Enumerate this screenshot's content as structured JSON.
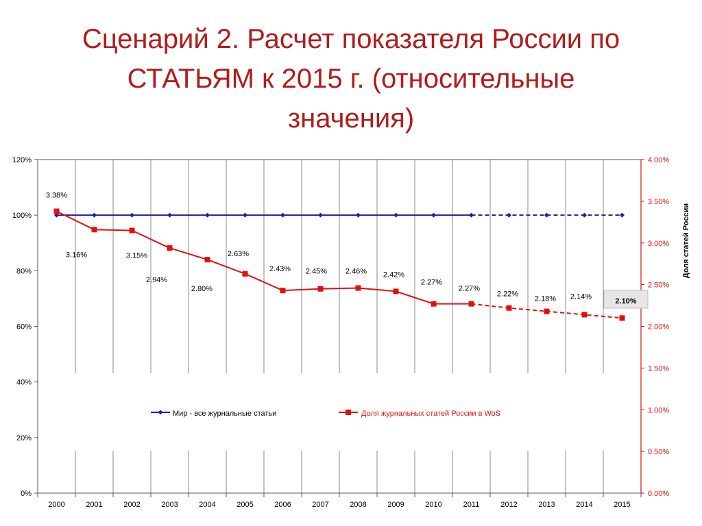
{
  "slide": {
    "title_lines": [
      "Сценарий 2. Расчет показателя России по",
      "СТАТЬЯМ к 2015 г. (относительные",
      "значения)"
    ]
  },
  "colors": {
    "title": "#b01c1c",
    "series_world": "#1f1f9e",
    "series_russia": "#e01010",
    "right_axis": "#e01010",
    "gridline": "#888888"
  },
  "chart_data": {
    "type": "line",
    "categories": [
      "2000",
      "2001",
      "2002",
      "2003",
      "2004",
      "2005",
      "2006",
      "2007",
      "2008",
      "2009",
      "2010",
      "2011",
      "2012",
      "2013",
      "2014",
      "2015"
    ],
    "left_axis": {
      "ylim": [
        0,
        120
      ],
      "ticks": [
        "0%",
        "20%",
        "40%",
        "60%",
        "80%",
        "100%",
        "120%"
      ],
      "tick_values": [
        0,
        20,
        40,
        60,
        80,
        100,
        120
      ]
    },
    "right_axis": {
      "ylabel": "Доля  статей   России",
      "ylim": [
        0,
        4
      ],
      "ticks": [
        "0.00%",
        "0.50%",
        "1.00%",
        "1.50%",
        "2.00%",
        "2.50%",
        "3.00%",
        "3.50%",
        "4.00%"
      ],
      "tick_values": [
        0,
        0.5,
        1,
        1.5,
        2,
        2.5,
        3,
        3.5,
        4
      ]
    },
    "series": [
      {
        "name": "Мир - все журнальные статьи",
        "axis": "left",
        "marker": "diamond",
        "values": [
          100,
          100,
          100,
          100,
          100,
          100,
          100,
          100,
          100,
          100,
          100,
          100,
          100,
          100,
          100,
          100
        ],
        "dashed_from_index": 11
      },
      {
        "name": "Доля журнальных статей России в WoS",
        "axis": "right",
        "marker": "square",
        "values": [
          3.38,
          3.16,
          3.15,
          2.94,
          2.8,
          2.63,
          2.43,
          2.45,
          2.46,
          2.42,
          2.27,
          2.27,
          2.22,
          2.18,
          2.14,
          2.1
        ],
        "data_labels": [
          "3.38%",
          "3.16%",
          "3.15%",
          "2.94%",
          "2.80%",
          "2.63%",
          "2.43%",
          "2.45%",
          "2.46%",
          "2.42%",
          "2.27%",
          "2.27%",
          "2.22%",
          "2.18%",
          "2.14%",
          "2.10%"
        ],
        "dashed_from_index": 11
      }
    ],
    "legend_position": "center-lower",
    "grid": "vertical"
  }
}
